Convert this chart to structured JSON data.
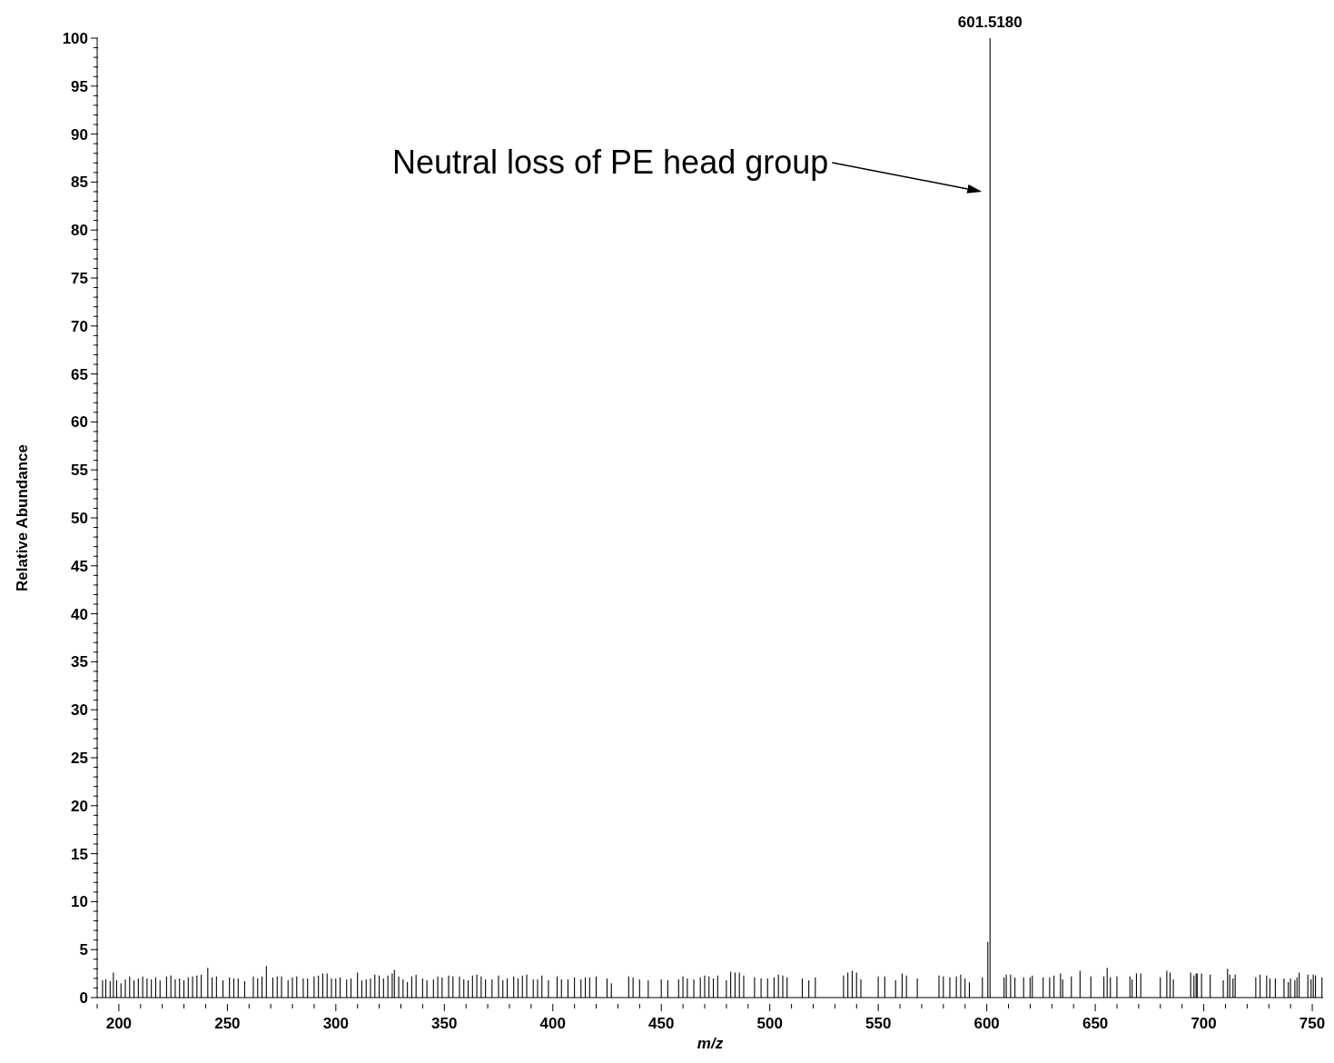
{
  "chart_data": {
    "type": "bar",
    "xlabel": "m/z",
    "ylabel": "Relative Abundance",
    "color": "#000000",
    "x": [
      192.5,
      194,
      196,
      197.5,
      199,
      201,
      203,
      205,
      207,
      209,
      211,
      213,
      215,
      217,
      219,
      222,
      224,
      226,
      228,
      230,
      232,
      234,
      236,
      238,
      241,
      243,
      245,
      248,
      251,
      253,
      255,
      258,
      262,
      264,
      266,
      268,
      271,
      273,
      275,
      278,
      280,
      282,
      285,
      287,
      290,
      292,
      294,
      296,
      298,
      300,
      302,
      305,
      307,
      310,
      312,
      314,
      316,
      318,
      320,
      322,
      324,
      326,
      327,
      329,
      331,
      333,
      335,
      337,
      340,
      342,
      345,
      347,
      349,
      352,
      354,
      357,
      359,
      361,
      363,
      365,
      367,
      369,
      372,
      375,
      377,
      379,
      382,
      384,
      386,
      388,
      391,
      393,
      395,
      398,
      402,
      404,
      407,
      410,
      413,
      415,
      417,
      420,
      425,
      427,
      435,
      437,
      440,
      444,
      450,
      453,
      458,
      460,
      462,
      465,
      468,
      470,
      472,
      474,
      476,
      480,
      482,
      484,
      486,
      488,
      493,
      496,
      499,
      502,
      504,
      506,
      508,
      515,
      518,
      521,
      534,
      536,
      538,
      540,
      542,
      550,
      553,
      558,
      561,
      563,
      568,
      578,
      580,
      583,
      586,
      588,
      590,
      592,
      598,
      600.5,
      601.518,
      608,
      609,
      611,
      613,
      617,
      620,
      621,
      626,
      629,
      631,
      634,
      635,
      639,
      643,
      648,
      654,
      655.5,
      657,
      660,
      666,
      667,
      669,
      671,
      680,
      683,
      684.5,
      686,
      694,
      695.5,
      696.5,
      697,
      699,
      703,
      709,
      711,
      712,
      713.5,
      714.5,
      724,
      726,
      729,
      730.5,
      733,
      737,
      739,
      740,
      742,
      743,
      744,
      748,
      749.5,
      750.5,
      751.5,
      754.5
    ],
    "values": [
      1.8,
      1.9,
      1.7,
      2.6,
      1.8,
      1.5,
      1.9,
      2.2,
      1.8,
      2.0,
      2.2,
      2.0,
      1.9,
      2.1,
      1.8,
      2.2,
      2.3,
      1.9,
      2.0,
      1.8,
      2.1,
      2.2,
      2.3,
      2.4,
      3.1,
      2.1,
      2.2,
      1.8,
      2.1,
      2.0,
      2.0,
      1.7,
      2.2,
      2.0,
      2.2,
      3.3,
      2.1,
      2.2,
      2.2,
      1.8,
      2.1,
      2.2,
      2.0,
      2.0,
      2.2,
      2.3,
      2.5,
      2.5,
      2.0,
      2.0,
      2.1,
      1.9,
      2.0,
      2.6,
      1.8,
      1.9,
      2.0,
      2.4,
      2.3,
      2.0,
      2.3,
      2.5,
      2.9,
      2.2,
      1.9,
      1.6,
      2.2,
      2.4,
      2.0,
      1.8,
      1.9,
      2.2,
      2.1,
      2.3,
      2.2,
      2.2,
      1.9,
      1.8,
      2.3,
      2.4,
      2.2,
      1.9,
      1.9,
      2.3,
      1.8,
      2.0,
      2.2,
      2.0,
      2.3,
      2.4,
      1.9,
      1.9,
      2.3,
      1.8,
      2.2,
      1.9,
      1.9,
      2.1,
      1.9,
      2.1,
      2.1,
      2.2,
      2.0,
      1.5,
      2.2,
      2.1,
      1.9,
      1.8,
      1.9,
      1.8,
      1.9,
      2.2,
      2.0,
      1.9,
      2.1,
      2.3,
      2.2,
      2.0,
      2.3,
      1.8,
      2.7,
      2.6,
      2.6,
      2.3,
      2.1,
      2.0,
      2.0,
      2.1,
      2.4,
      2.3,
      2.1,
      2.0,
      1.8,
      2.1,
      2.3,
      2.6,
      2.8,
      2.6,
      1.9,
      2.2,
      2.2,
      1.8,
      2.5,
      2.3,
      2.0,
      2.3,
      2.2,
      2.1,
      2.2,
      2.4,
      2.0,
      1.6,
      2.1,
      5.8,
      100,
      2.1,
      2.4,
      2.4,
      2.1,
      2.1,
      2.1,
      2.3,
      2.1,
      2.1,
      2.3,
      2.5,
      1.9,
      2.2,
      2.8,
      2.2,
      2.2,
      3.1,
      2.1,
      2.2,
      2.2,
      1.9,
      2.5,
      2.5,
      2.1,
      2.8,
      2.6,
      1.9,
      2.6,
      2.3,
      2.5,
      2.5,
      2.5,
      2.4,
      1.8,
      3.0,
      2.4,
      2.0,
      2.4,
      2.1,
      2.4,
      2.3,
      2.0,
      2.0,
      2.0,
      1.6,
      2.0,
      1.8,
      2.1,
      2.6,
      2.4,
      1.9,
      2.4,
      2.3,
      2.1
    ],
    "xlim": [
      190,
      755
    ],
    "xticks": [
      {
        "value": 190,
        "label": null
      },
      200,
      {
        "value": 210,
        "label": null
      },
      {
        "value": 220,
        "label": null
      },
      {
        "value": 230,
        "label": null
      },
      {
        "value": 240,
        "label": null
      },
      250,
      {
        "value": 260,
        "label": null
      },
      {
        "value": 270,
        "label": null
      },
      {
        "value": 280,
        "label": null
      },
      {
        "value": 290,
        "label": null
      },
      300,
      {
        "value": 310,
        "label": null
      },
      {
        "value": 320,
        "label": null
      },
      {
        "value": 330,
        "label": null
      },
      {
        "value": 340,
        "label": null
      },
      350,
      {
        "value": 360,
        "label": null
      },
      {
        "value": 370,
        "label": null
      },
      {
        "value": 380,
        "label": null
      },
      {
        "value": 390,
        "label": null
      },
      400,
      {
        "value": 410,
        "label": null
      },
      {
        "value": 420,
        "label": null
      },
      {
        "value": 430,
        "label": null
      },
      {
        "value": 440,
        "label": null
      },
      450,
      {
        "value": 460,
        "label": null
      },
      {
        "value": 470,
        "label": null
      },
      {
        "value": 480,
        "label": null
      },
      {
        "value": 490,
        "label": null
      },
      500,
      {
        "value": 510,
        "label": null
      },
      {
        "value": 520,
        "label": null
      },
      {
        "value": 530,
        "label": null
      },
      {
        "value": 540,
        "label": null
      },
      550,
      {
        "value": 560,
        "label": null
      },
      {
        "value": 570,
        "label": null
      },
      {
        "value": 580,
        "label": null
      },
      {
        "value": 590,
        "label": null
      },
      600,
      {
        "value": 610,
        "label": null
      },
      {
        "value": 620,
        "label": null
      },
      {
        "value": 630,
        "label": null
      },
      {
        "value": 640,
        "label": null
      },
      650,
      {
        "value": 660,
        "label": null
      },
      {
        "value": 670,
        "label": null
      },
      {
        "value": 680,
        "label": null
      },
      {
        "value": 690,
        "label": null
      },
      700,
      {
        "value": 710,
        "label": null
      },
      {
        "value": 720,
        "label": null
      },
      {
        "value": 730,
        "label": null
      },
      {
        "value": 740,
        "label": null
      },
      750
    ],
    "ylim": [
      0,
      100
    ],
    "yticks": [
      0,
      {
        "value": 1,
        "label": null
      },
      {
        "value": 2,
        "label": null
      },
      {
        "value": 3,
        "label": null
      },
      {
        "value": 4,
        "label": null
      },
      5,
      {
        "value": 6,
        "label": null
      },
      {
        "value": 7,
        "label": null
      },
      {
        "value": 8,
        "label": null
      },
      {
        "value": 9,
        "label": null
      },
      10,
      {
        "value": 11,
        "label": null
      },
      {
        "value": 12,
        "label": null
      },
      {
        "value": 13,
        "label": null
      },
      {
        "value": 14,
        "label": null
      },
      15,
      {
        "value": 16,
        "label": null
      },
      {
        "value": 17,
        "label": null
      },
      {
        "value": 18,
        "label": null
      },
      {
        "value": 19,
        "label": null
      },
      20,
      {
        "value": 21,
        "label": null
      },
      {
        "value": 22,
        "label": null
      },
      {
        "value": 23,
        "label": null
      },
      {
        "value": 24,
        "label": null
      },
      25,
      {
        "value": 26,
        "label": null
      },
      {
        "value": 27,
        "label": null
      },
      {
        "value": 28,
        "label": null
      },
      {
        "value": 29,
        "label": null
      },
      30,
      {
        "value": 31,
        "label": null
      },
      {
        "value": 32,
        "label": null
      },
      {
        "value": 33,
        "label": null
      },
      {
        "value": 34,
        "label": null
      },
      35,
      {
        "value": 36,
        "label": null
      },
      {
        "value": 37,
        "label": null
      },
      {
        "value": 38,
        "label": null
      },
      {
        "value": 39,
        "label": null
      },
      40,
      {
        "value": 41,
        "label": null
      },
      {
        "value": 42,
        "label": null
      },
      {
        "value": 43,
        "label": null
      },
      {
        "value": 44,
        "label": null
      },
      45,
      {
        "value": 46,
        "label": null
      },
      {
        "value": 47,
        "label": null
      },
      {
        "value": 48,
        "label": null
      },
      {
        "value": 49,
        "label": null
      },
      50,
      {
        "value": 51,
        "label": null
      },
      {
        "value": 52,
        "label": null
      },
      {
        "value": 53,
        "label": null
      },
      {
        "value": 54,
        "label": null
      },
      55,
      {
        "value": 56,
        "label": null
      },
      {
        "value": 57,
        "label": null
      },
      {
        "value": 58,
        "label": null
      },
      {
        "value": 59,
        "label": null
      },
      60,
      {
        "value": 61,
        "label": null
      },
      {
        "value": 62,
        "label": null
      },
      {
        "value": 63,
        "label": null
      },
      {
        "value": 64,
        "label": null
      },
      65,
      {
        "value": 66,
        "label": null
      },
      {
        "value": 67,
        "label": null
      },
      {
        "value": 68,
        "label": null
      },
      {
        "value": 69,
        "label": null
      },
      70,
      {
        "value": 71,
        "label": null
      },
      {
        "value": 72,
        "label": null
      },
      {
        "value": 73,
        "label": null
      },
      {
        "value": 74,
        "label": null
      },
      75,
      {
        "value": 76,
        "label": null
      },
      {
        "value": 77,
        "label": null
      },
      {
        "value": 78,
        "label": null
      },
      {
        "value": 79,
        "label": null
      },
      80,
      {
        "value": 81,
        "label": null
      },
      {
        "value": 82,
        "label": null
      },
      {
        "value": 83,
        "label": null
      },
      {
        "value": 84,
        "label": null
      },
      85,
      {
        "value": 86,
        "label": null
      },
      {
        "value": 87,
        "label": null
      },
      {
        "value": 88,
        "label": null
      },
      {
        "value": 89,
        "label": null
      },
      90,
      {
        "value": 91,
        "label": null
      },
      {
        "value": 92,
        "label": null
      },
      {
        "value": 93,
        "label": null
      },
      {
        "value": 94,
        "label": null
      },
      95,
      {
        "value": 96,
        "label": null
      },
      {
        "value": 97,
        "label": null
      },
      {
        "value": 98,
        "label": null
      },
      {
        "value": 99,
        "label": null
      },
      100
    ],
    "annotations": [
      {
        "text": "601.5180",
        "x": 601.518,
        "y": 100
      },
      "Neutral loss of PE head group"
    ]
  }
}
